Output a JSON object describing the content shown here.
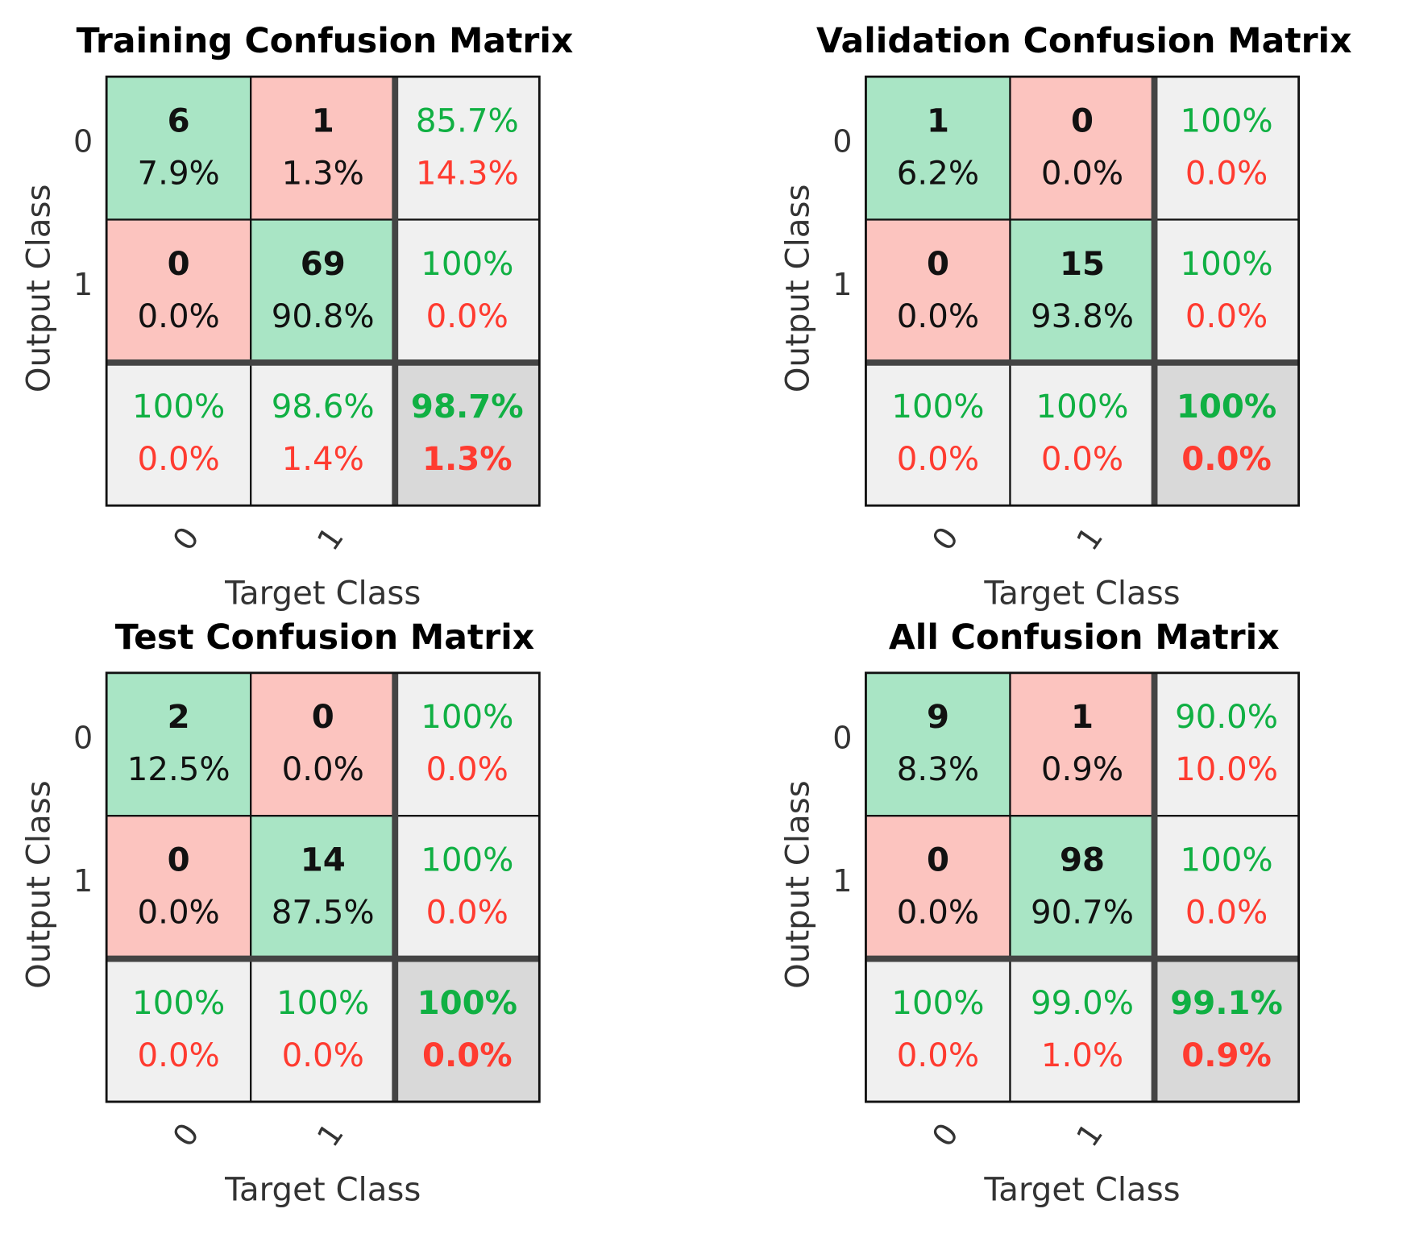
{
  "chart_data": [
    {
      "type": "confusion",
      "title": "Training Confusion Matrix",
      "xlabel": "Target Class",
      "ylabel": "Output Class",
      "classes": [
        0,
        1
      ],
      "counts": [
        [
          6,
          1
        ],
        [
          0,
          69
        ]
      ],
      "cell_percents": [
        [
          "7.9%",
          "1.3%"
        ],
        [
          "0.0%",
          "90.8%"
        ]
      ],
      "row_summary": [
        [
          "85.7%",
          "14.3%"
        ],
        [
          "100%",
          "0.0%"
        ]
      ],
      "col_summary": [
        [
          "100%",
          "0.0%"
        ],
        [
          "98.6%",
          "1.4%"
        ]
      ],
      "total": [
        "98.7%",
        "1.3%"
      ]
    },
    {
      "type": "confusion",
      "title": "Validation Confusion Matrix",
      "xlabel": "Target Class",
      "ylabel": "Output Class",
      "classes": [
        0,
        1
      ],
      "counts": [
        [
          1,
          0
        ],
        [
          0,
          15
        ]
      ],
      "cell_percents": [
        [
          "6.2%",
          "0.0%"
        ],
        [
          "0.0%",
          "93.8%"
        ]
      ],
      "row_summary": [
        [
          "100%",
          "0.0%"
        ],
        [
          "100%",
          "0.0%"
        ]
      ],
      "col_summary": [
        [
          "100%",
          "0.0%"
        ],
        [
          "100%",
          "0.0%"
        ]
      ],
      "total": [
        "100%",
        "0.0%"
      ]
    },
    {
      "type": "confusion",
      "title": "Test Confusion Matrix",
      "xlabel": "Target Class",
      "ylabel": "Output Class",
      "classes": [
        0,
        1
      ],
      "counts": [
        [
          2,
          0
        ],
        [
          0,
          14
        ]
      ],
      "cell_percents": [
        [
          "12.5%",
          "0.0%"
        ],
        [
          "0.0%",
          "87.5%"
        ]
      ],
      "row_summary": [
        [
          "100%",
          "0.0%"
        ],
        [
          "100%",
          "0.0%"
        ]
      ],
      "col_summary": [
        [
          "100%",
          "0.0%"
        ],
        [
          "100%",
          "0.0%"
        ]
      ],
      "total": [
        "100%",
        "0.0%"
      ]
    },
    {
      "type": "confusion",
      "title": "All Confusion Matrix",
      "xlabel": "Target Class",
      "ylabel": "Output Class",
      "classes": [
        0,
        1
      ],
      "counts": [
        [
          9,
          1
        ],
        [
          0,
          98
        ]
      ],
      "cell_percents": [
        [
          "8.3%",
          "0.9%"
        ],
        [
          "0.0%",
          "90.7%"
        ]
      ],
      "row_summary": [
        [
          "90.0%",
          "10.0%"
        ],
        [
          "100%",
          "0.0%"
        ]
      ],
      "col_summary": [
        [
          "100%",
          "0.0%"
        ],
        [
          "99.0%",
          "1.0%"
        ]
      ],
      "total": [
        "99.1%",
        "0.9%"
      ]
    }
  ]
}
